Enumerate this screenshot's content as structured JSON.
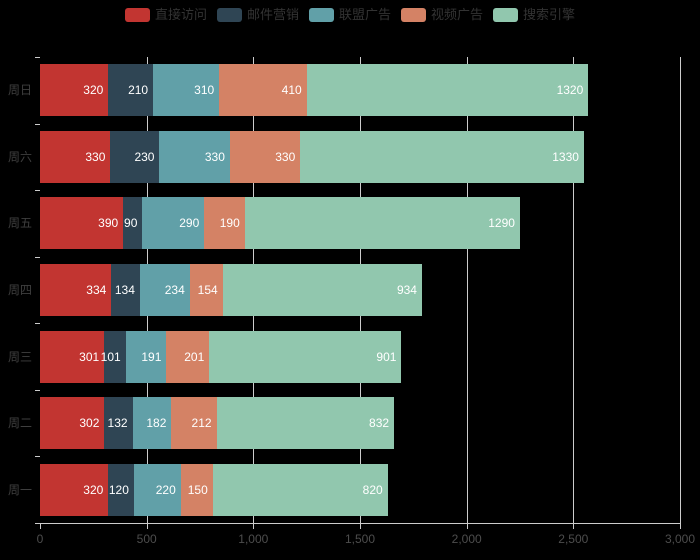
{
  "chart_data": {
    "type": "bar",
    "orientation": "horizontal",
    "stacked": true,
    "title": "",
    "categories_bottom_to_top": [
      "周一",
      "周二",
      "周三",
      "周四",
      "周五",
      "周六",
      "周日"
    ],
    "series": [
      {
        "key": "direct-visit",
        "name": "直接访问",
        "color": "#c23531",
        "values": [
          320,
          302,
          301,
          334,
          390,
          330,
          320
        ]
      },
      {
        "key": "email-marketing",
        "name": "邮件营销",
        "color": "#2f4554",
        "values": [
          120,
          132,
          101,
          134,
          90,
          230,
          210
        ]
      },
      {
        "key": "affiliate-ads",
        "name": "联盟广告",
        "color": "#61a0a8",
        "values": [
          220,
          182,
          191,
          234,
          290,
          330,
          310
        ]
      },
      {
        "key": "video-ads",
        "name": "视频广告",
        "color": "#d48265",
        "values": [
          150,
          212,
          201,
          154,
          190,
          330,
          410
        ]
      },
      {
        "key": "search-engine",
        "name": "搜索引擎",
        "color": "#91c7ae",
        "values": [
          820,
          832,
          901,
          934,
          1290,
          1330,
          1320
        ]
      }
    ],
    "xlim": [
      0,
      3000
    ],
    "x_tick_values": [
      0,
      500,
      1000,
      1500,
      2000,
      2500,
      3000
    ],
    "x_tick_labels": [
      "0",
      "500",
      "1,000",
      "1,500",
      "2,000",
      "2,500",
      "3,000"
    ],
    "legend_position": "top",
    "value_label_position": "insideRight",
    "grid": true
  },
  "style": {
    "background": "#000000",
    "grid_line_color": "#cccccc",
    "axis_line_color": "#cccccc",
    "tick_color": "#cccccc",
    "x_axis_label_color": "#4d4d4d",
    "y_axis_label_color": "#3f3f3f",
    "legend_text_color": "#333333",
    "value_label_color": "#ffffff"
  }
}
